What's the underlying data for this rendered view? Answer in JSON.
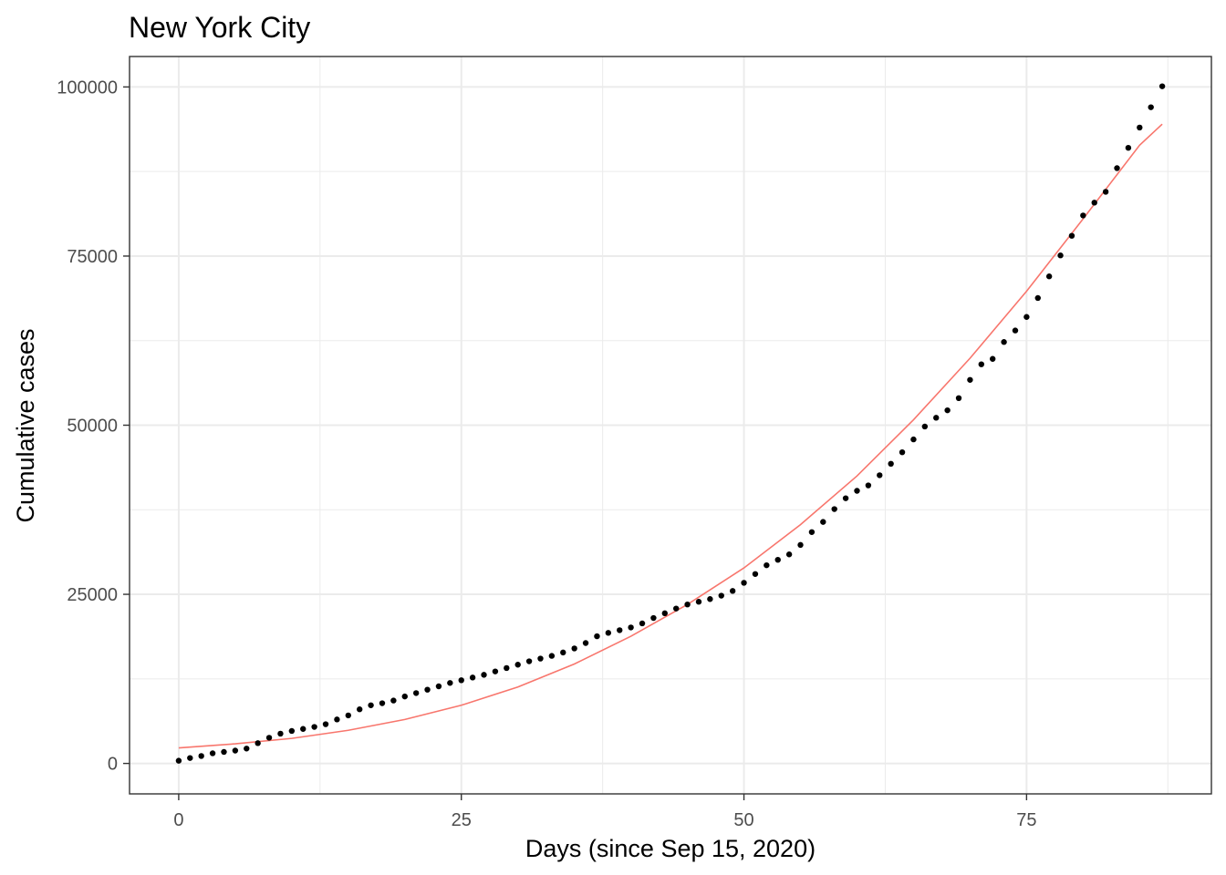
{
  "chart_data": {
    "type": "scatter",
    "title": "New York City",
    "xlabel": "Days (since Sep 15, 2020)",
    "ylabel": "Cumulative cases",
    "xlim": [
      -4.35,
      91.35
    ],
    "ylim": [
      -4500,
      104500
    ],
    "x_ticks": [
      0,
      25,
      50,
      75
    ],
    "x_tick_labels": [
      "0",
      "25",
      "50",
      "75"
    ],
    "x_minor_ticks": [
      12.5,
      37.5,
      62.5,
      87.5
    ],
    "y_ticks": [
      0,
      25000,
      50000,
      75000,
      100000
    ],
    "y_tick_labels": [
      "0",
      "25000",
      "50000",
      "75000",
      "100000"
    ],
    "y_minor_ticks": [
      12500,
      37500,
      62500,
      87500
    ],
    "grid": true,
    "legend": "none",
    "colors": {
      "points": "#000000",
      "fit": "#F8766D",
      "grid": "#ebebeb",
      "panel_border": "#333333",
      "tick_text": "#4d4d4d"
    },
    "series": [
      {
        "type": "scatter",
        "x": [
          0,
          1,
          2,
          3,
          4,
          5,
          6,
          7,
          8,
          9,
          10,
          11,
          12,
          13,
          14,
          15,
          16,
          17,
          18,
          19,
          20,
          21,
          22,
          23,
          24,
          25,
          26,
          27,
          28,
          29,
          30,
          31,
          32,
          33,
          34,
          35,
          36,
          37,
          38,
          39,
          40,
          41,
          42,
          43,
          44,
          45,
          46,
          47,
          48,
          49,
          50,
          51,
          52,
          53,
          54,
          55,
          56,
          57,
          58,
          59,
          60,
          61,
          62,
          63,
          64,
          65,
          66,
          67,
          68,
          69,
          70,
          71,
          72,
          73,
          74,
          75,
          76,
          77,
          78,
          79,
          80,
          81,
          82,
          83,
          84,
          85,
          86,
          87
        ],
        "y": [
          400,
          800,
          1100,
          1500,
          1700,
          1900,
          2200,
          3000,
          3800,
          4400,
          4800,
          5100,
          5400,
          5800,
          6500,
          7100,
          8000,
          8600,
          8900,
          9300,
          9900,
          10400,
          10900,
          11400,
          11900,
          12300,
          12700,
          13100,
          13600,
          14100,
          14600,
          15100,
          15500,
          15900,
          16400,
          17000,
          17800,
          18800,
          19300,
          19700,
          20100,
          20700,
          21500,
          22200,
          22900,
          23500,
          23900,
          24300,
          24800,
          25500,
          26700,
          28000,
          29300,
          30100,
          30900,
          32300,
          34200,
          35700,
          37600,
          39200,
          40300,
          41100,
          42600,
          44300,
          46000,
          47900,
          49800,
          51100,
          52200,
          54000,
          56700,
          59000,
          59800,
          62300,
          64000,
          66000,
          68800,
          72000,
          75100,
          78000,
          81000,
          82900,
          84500,
          88000,
          91000,
          94000,
          97000,
          100100
        ]
      },
      {
        "type": "line",
        "x": [
          0,
          5,
          10,
          15,
          20,
          25,
          30,
          35,
          40,
          45,
          50,
          55,
          60,
          65,
          70,
          75,
          80,
          85,
          87
        ],
        "y": [
          2300,
          2900,
          3700,
          4900,
          6500,
          8600,
          11300,
          14700,
          18800,
          23500,
          28900,
          35300,
          42500,
          50800,
          59900,
          69800,
          80500,
          91400,
          94500
        ]
      }
    ]
  }
}
